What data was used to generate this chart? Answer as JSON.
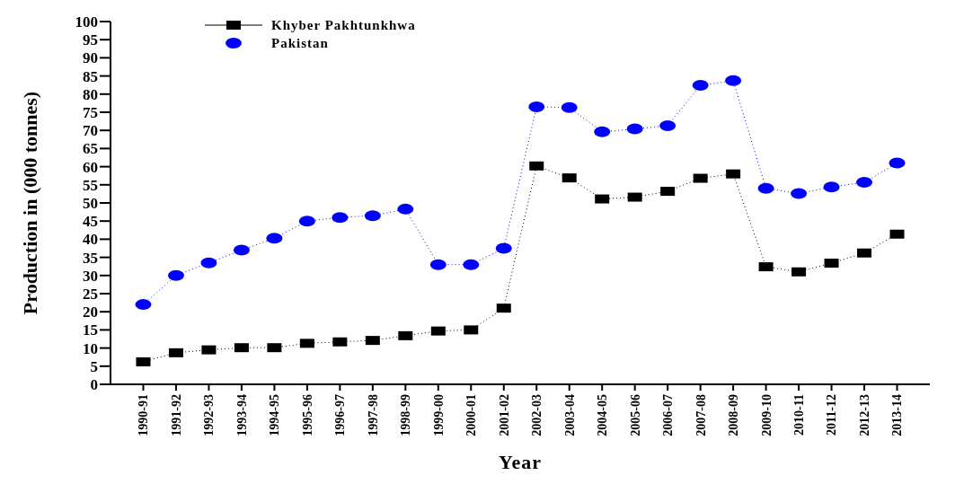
{
  "chart_data": {
    "type": "line",
    "xlabel": "Year",
    "ylabel": "Production in (000 tonnes)",
    "categories": [
      "1990-91",
      "1991-92",
      "1992-93",
      "1993-94",
      "1994-95",
      "1995-96",
      "1996-97",
      "1997-98",
      "1998-99",
      "1999-00",
      "2000-01",
      "2001-02",
      "2002-03",
      "2003-04",
      "2004-05",
      "2005-06",
      "2006-07",
      "2007-08",
      "2008-09",
      "2009-10",
      "2010-11",
      "2011-12",
      "2012-13",
      "2013-14"
    ],
    "series": [
      {
        "name": "Khyber Pakhtunkhwa",
        "color": "#000000",
        "marker": "square",
        "values": [
          6.2,
          8.7,
          9.5,
          10.1,
          10.1,
          11.3,
          11.7,
          12.1,
          13.4,
          14.7,
          15,
          21,
          60.2,
          56.9,
          51.1,
          51.6,
          53.2,
          56.8,
          58,
          32.4,
          31,
          33.4,
          36.2,
          41.4
        ]
      },
      {
        "name": "Pakistan",
        "color": "#0000ff",
        "marker": "circle",
        "values": [
          22,
          30,
          33.5,
          37,
          40.3,
          45,
          46,
          46.5,
          48.3,
          33,
          33,
          37.5,
          76.5,
          76.3,
          69.6,
          70.4,
          71.3,
          82.4,
          83.7,
          54,
          52.6,
          54.4,
          55.7,
          61
        ]
      }
    ],
    "ylim": [
      0,
      100
    ],
    "yticks": [
      0,
      5,
      10,
      15,
      20,
      25,
      30,
      35,
      40,
      45,
      50,
      55,
      60,
      65,
      70,
      75,
      80,
      85,
      90,
      95,
      100
    ],
    "grid": false,
    "legend": "top left",
    "line_style": "dotted"
  }
}
